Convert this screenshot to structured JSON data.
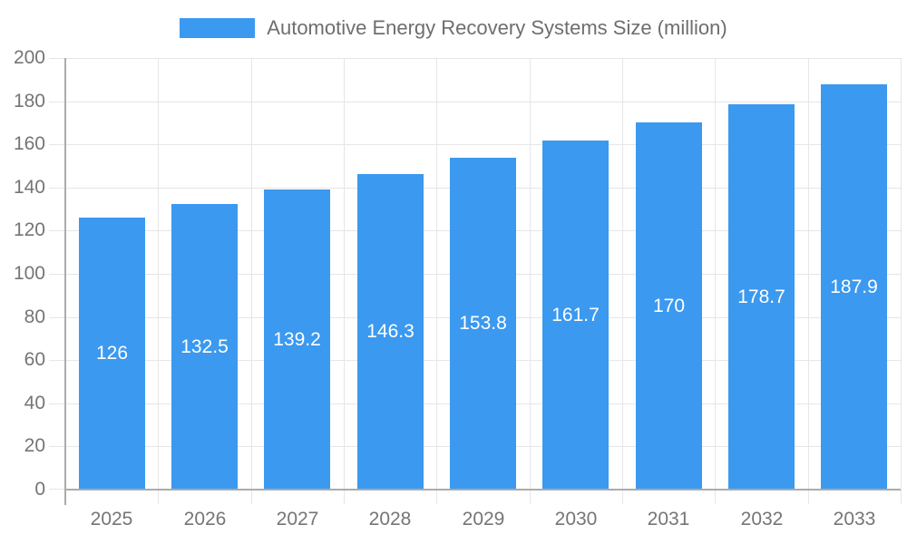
{
  "chart_data": {
    "type": "bar",
    "title": "Automotive Energy Recovery Systems Size (million)",
    "categories": [
      "2025",
      "2026",
      "2027",
      "2028",
      "2029",
      "2030",
      "2031",
      "2032",
      "2033"
    ],
    "values": [
      126,
      132.5,
      139.2,
      146.3,
      153.8,
      161.7,
      170,
      178.7,
      187.9
    ],
    "value_labels": [
      "126",
      "132.5",
      "139.2",
      "146.3",
      "153.8",
      "161.7",
      "170",
      "178.7",
      "187.9"
    ],
    "xlabel": "",
    "ylabel": "",
    "ylim": [
      0,
      200
    ],
    "yticks": [
      0,
      20,
      40,
      60,
      80,
      100,
      120,
      140,
      160,
      180,
      200
    ],
    "grid": true,
    "legend_position": "top",
    "bar_labels_inside": true,
    "colors": {
      "bar": "#3B99EF",
      "axis_line": "#ABABAB",
      "grid_line": "#E6E6E6",
      "tick_label": "#757575",
      "legend_text": "#6E6E6E",
      "bar_label": "#FFFFFF",
      "background": "#FFFFFF"
    }
  }
}
